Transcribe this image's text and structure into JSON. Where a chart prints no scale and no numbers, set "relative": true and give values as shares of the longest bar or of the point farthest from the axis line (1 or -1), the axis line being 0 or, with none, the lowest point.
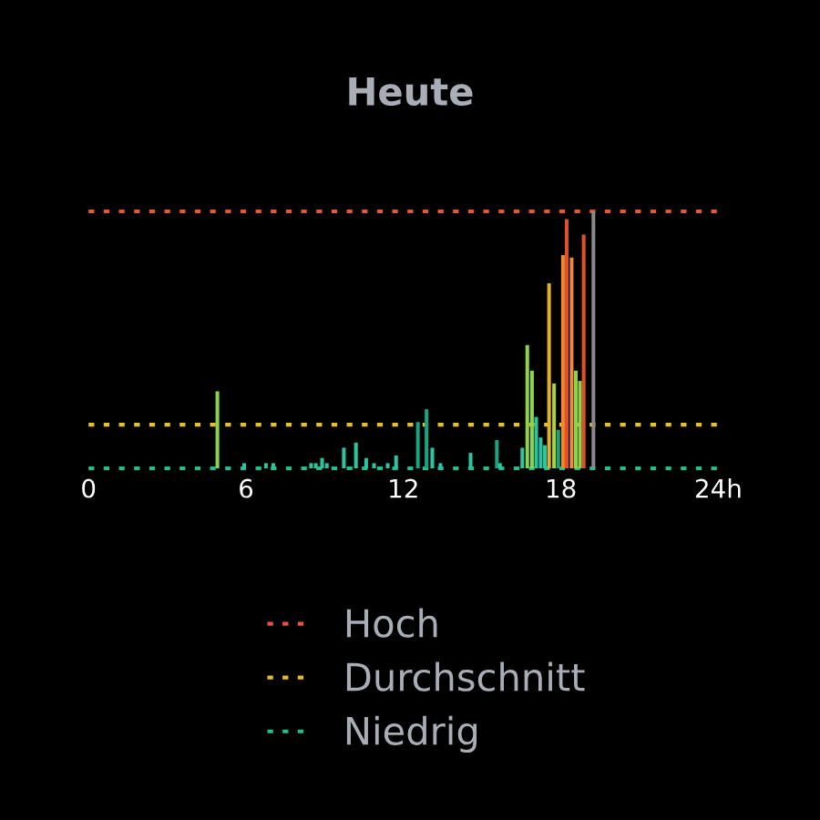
{
  "chart_data": {
    "type": "bar",
    "title": "Heute",
    "relative": true,
    "x": [
      4.91,
      5.93,
      6.76,
      7.04,
      8.48,
      8.66,
      8.9,
      9.08,
      9.73,
      10.19,
      10.58,
      10.88,
      11.4,
      11.72,
      12.55,
      12.88,
      13.1,
      13.41,
      14.56,
      15.56,
      15.68,
      16.53,
      16.72,
      16.9,
      17.06,
      17.23,
      17.39,
      17.55,
      17.74,
      17.9,
      18.08,
      18.22,
      18.41,
      18.57,
      18.73,
      18.87,
      19.24
    ],
    "values": [
      0.3,
      0.02,
      0.02,
      0.02,
      0.02,
      0.02,
      0.04,
      0.02,
      0.08,
      0.1,
      0.04,
      0.02,
      0.02,
      0.05,
      0.18,
      0.23,
      0.08,
      0.02,
      0.06,
      0.11,
      0.02,
      0.08,
      0.48,
      0.38,
      0.2,
      0.12,
      0.09,
      0.72,
      0.33,
      0.15,
      0.83,
      0.97,
      0.82,
      0.38,
      0.34,
      0.91,
      1.0
    ],
    "colors": [
      "#8fd14f",
      "#2ec4a0",
      "#2ec4a0",
      "#2ec4a0",
      "#2ec4a0",
      "#2ec4a0",
      "#2ec4a0",
      "#2ec4a0",
      "#2ec4a0",
      "#2ec4a0",
      "#2ec4a0",
      "#2ec4a0",
      "#2ec4a0",
      "#2ec4a0",
      "#1aa37f",
      "#1aa37f",
      "#2ec4a0",
      "#2ec4a0",
      "#2ec4a0",
      "#1aa37f",
      "#2ec4a0",
      "#2ec4a0",
      "#8fd14f",
      "#8fd14f",
      "#2ec4a0",
      "#2ec4a0",
      "#2ec4a0",
      "#e0b030",
      "#a8d040",
      "#1aa37f",
      "#f08a30",
      "#e0502a",
      "#f08a30",
      "#8fd14f",
      "#8fd14f",
      "#e0502a",
      "#8a8a8a"
    ],
    "xlim": [
      0,
      24
    ],
    "xticks": [
      0,
      6,
      12,
      18,
      {
        "value": 24,
        "label": "24h"
      }
    ],
    "ref_lines": [
      {
        "axis": "y",
        "value": 1.0,
        "label": "Hoch",
        "color": "#e8553a",
        "line_style": "dotted"
      },
      {
        "axis": "y",
        "value": 0.17,
        "label": "Durchschnitt",
        "color": "#e6c02a",
        "line_style": "dotted"
      },
      {
        "axis": "y",
        "value": 0.0,
        "label": "Niedrig",
        "color": "#1fbf8f",
        "line_style": "dotted"
      }
    ],
    "legend": "bottom",
    "grid": false
  }
}
